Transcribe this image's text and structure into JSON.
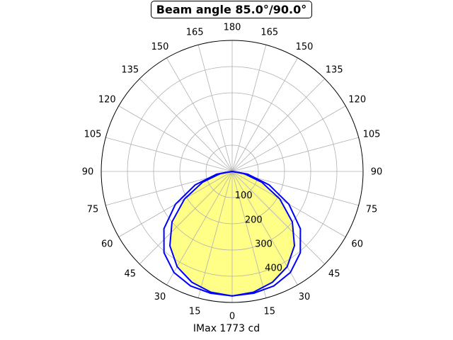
{
  "chart_data": {
    "type": "polar-line",
    "title": "Beam angle 85.0°/90.0°",
    "xlabel": "IMax 1773 cd",
    "angle_ticks_left": [
      "0",
      "15",
      "30",
      "45",
      "60",
      "75",
      "90",
      "105",
      "120",
      "135",
      "150",
      "165",
      "180"
    ],
    "angle_ticks_right": [
      "15",
      "30",
      "45",
      "60",
      "75",
      "90",
      "105",
      "120",
      "135",
      "150",
      "165"
    ],
    "radial_ticks": [
      100,
      200,
      300,
      400
    ],
    "rlim": [
      0,
      500
    ],
    "grid": true,
    "colors": {
      "curve": "#0000ff",
      "fill": "#ffff88",
      "grid": "#b0b0b0"
    },
    "series": [
      {
        "angles": [
          0,
          10,
          20,
          30,
          40,
          50,
          60,
          70,
          80,
          90
        ],
        "values": [
          475,
          468,
          450,
          420,
          370,
          300,
          210,
          120,
          45,
          0
        ]
      },
      {
        "angles": [
          0,
          10,
          20,
          30,
          40,
          50,
          60,
          70,
          80,
          90
        ],
        "values": [
          475,
          472,
          465,
          445,
          405,
          340,
          250,
          150,
          60,
          0
        ]
      }
    ]
  }
}
